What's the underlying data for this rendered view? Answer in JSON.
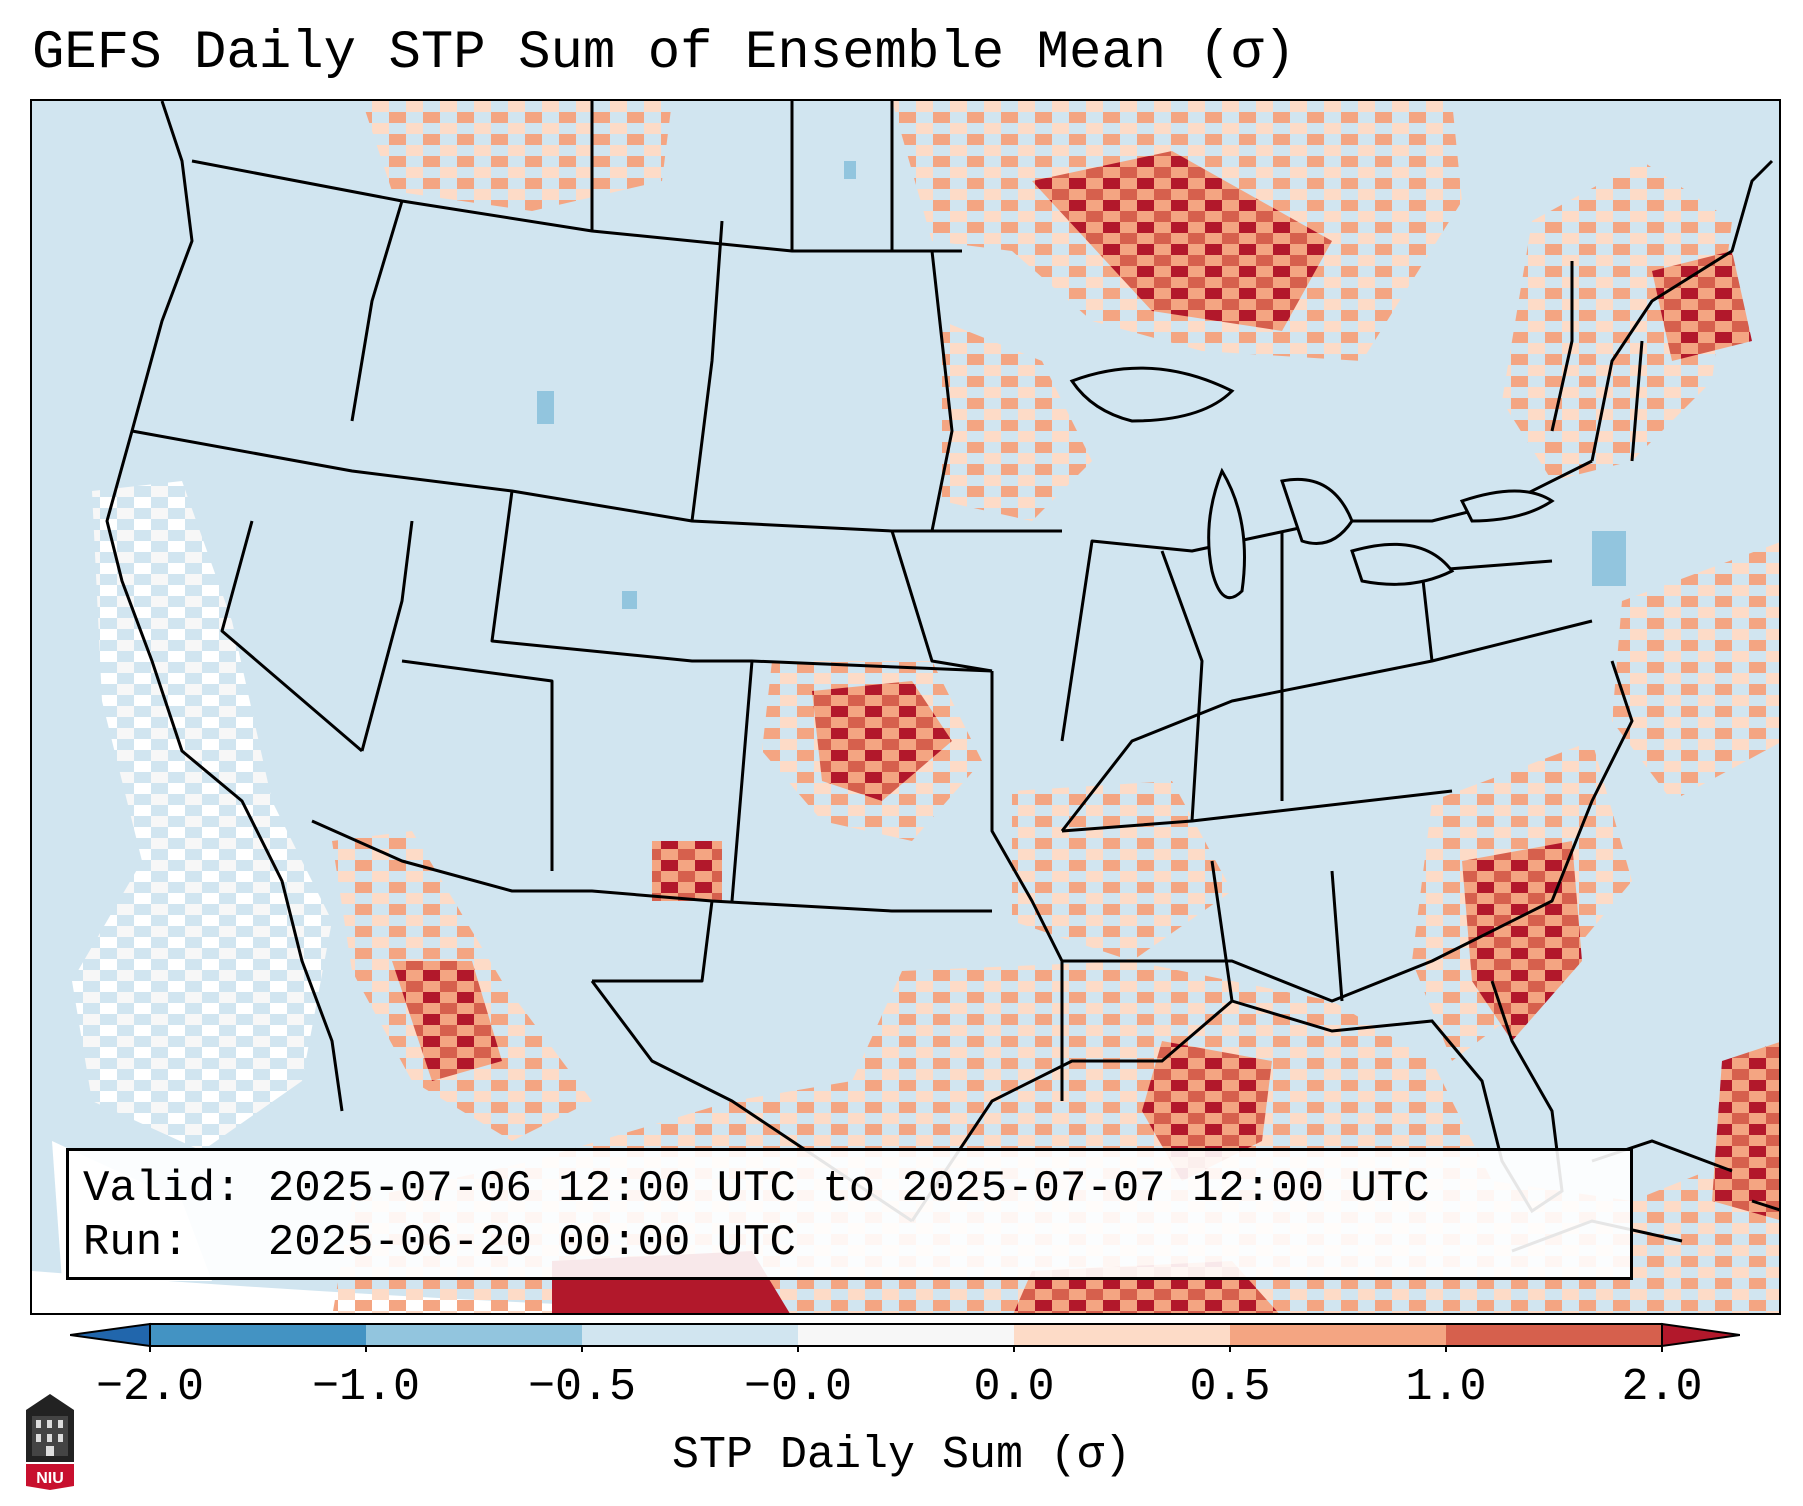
{
  "title": "GEFS Daily STP Sum of Ensemble Mean (σ)",
  "info": {
    "valid": "Valid: 2025-07-06 12:00 UTC to 2025-07-07 12:00 UTC",
    "run": "Run:   2025-06-20 00:00 UTC"
  },
  "colorbar": {
    "label": "STP Daily Sum (σ)",
    "ticks": [
      "−2.0",
      "−1.0",
      "−0.5",
      "−0.0",
      "0.0",
      "0.5",
      "1.0",
      "2.0"
    ],
    "colors": {
      "extend_low": "#2166ac",
      "bins": [
        "#4393c3",
        "#92c5de",
        "#d1e5f0",
        "#f7f7f7",
        "#fddbc7",
        "#f4a582",
        "#d6604d"
      ],
      "extend_high": "#b2182b"
    }
  },
  "map": {
    "background_color": "#d1e5f0",
    "anomaly_areas": [
      {
        "region": "oklahoma-kansas",
        "level": 2.0
      },
      {
        "region": "southeast-atlantic-coast",
        "level": 1.0
      },
      {
        "region": "gulf-of-mexico",
        "level": 0.5
      },
      {
        "region": "great-lakes-canada",
        "level": 0.5
      },
      {
        "region": "new-england-quebec",
        "level": 0.5
      },
      {
        "region": "northern-mexico",
        "level": 0.5
      },
      {
        "region": "pacific-offshore",
        "level": 0.0
      }
    ]
  },
  "logo": {
    "text": "NIU",
    "color": "#c8102e"
  }
}
